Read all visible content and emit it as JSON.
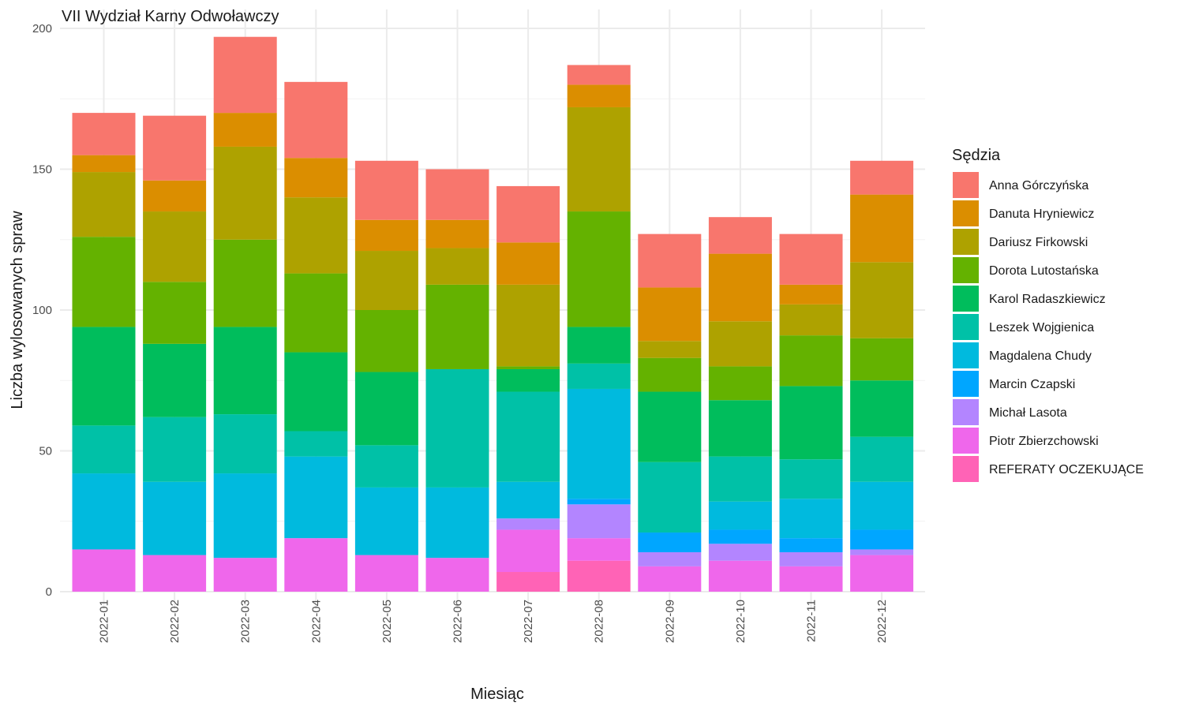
{
  "chart_data": {
    "type": "bar",
    "stacked": true,
    "title": "VII Wydział Karny Odwoławczy",
    "xlabel": "Miesiąc",
    "ylabel": "Liczba wylosowanych spraw",
    "ylim": [
      0,
      200
    ],
    "y_ticks": [
      0,
      50,
      100,
      150,
      200
    ],
    "grid": true,
    "legend_position": "right",
    "legend_title": "Sędzia",
    "categories": [
      "2022-01",
      "2022-02",
      "2022-03",
      "2022-04",
      "2022-05",
      "2022-06",
      "2022-07",
      "2022-08",
      "2022-09",
      "2022-10",
      "2022-11",
      "2022-12"
    ],
    "series": [
      {
        "name": "Anna Górczyńska",
        "color": "#F8766D",
        "values": [
          15,
          23,
          27,
          27,
          21,
          18,
          20,
          7,
          19,
          13,
          18,
          12
        ]
      },
      {
        "name": "Danuta Hryniewicz",
        "color": "#DB8E00",
        "values": [
          6,
          11,
          12,
          14,
          11,
          10,
          15,
          8,
          19,
          24,
          7,
          24
        ]
      },
      {
        "name": "Dariusz Firkowski",
        "color": "#AEA200",
        "values": [
          23,
          25,
          33,
          27,
          21,
          13,
          29,
          37,
          6,
          16,
          11,
          27
        ]
      },
      {
        "name": "Dorota Lutostańska",
        "color": "#64B200",
        "values": [
          32,
          22,
          31,
          28,
          22,
          30,
          1,
          41,
          12,
          12,
          18,
          15
        ]
      },
      {
        "name": "Karol Radaszkiewicz",
        "color": "#00BD5C",
        "values": [
          35,
          26,
          31,
          28,
          26,
          0,
          8,
          13,
          25,
          20,
          26,
          20
        ]
      },
      {
        "name": "Leszek Wojgienica",
        "color": "#00C1A7",
        "values": [
          17,
          23,
          21,
          9,
          15,
          42,
          32,
          9,
          25,
          16,
          14,
          16
        ]
      },
      {
        "name": "Magdalena Chudy",
        "color": "#00BADE",
        "values": [
          27,
          26,
          30,
          29,
          24,
          25,
          13,
          39,
          0,
          10,
          14,
          17
        ]
      },
      {
        "name": "Marcin Czapski",
        "color": "#00A6FF",
        "values": [
          0,
          0,
          0,
          0,
          0,
          0,
          0,
          2,
          7,
          5,
          5,
          7
        ]
      },
      {
        "name": "Michał Lasota",
        "color": "#B385FF",
        "values": [
          0,
          0,
          0,
          0,
          0,
          0,
          4,
          12,
          5,
          6,
          5,
          2
        ]
      },
      {
        "name": "Piotr Zbierzchowski",
        "color": "#EF67EB",
        "values": [
          15,
          13,
          12,
          19,
          13,
          12,
          15,
          8,
          9,
          11,
          9,
          13
        ]
      },
      {
        "name": "REFERATY OCZEKUJĄCE",
        "color": "#FF63B6",
        "values": [
          0,
          0,
          0,
          0,
          0,
          0,
          7,
          11,
          0,
          0,
          0,
          0
        ]
      }
    ]
  }
}
